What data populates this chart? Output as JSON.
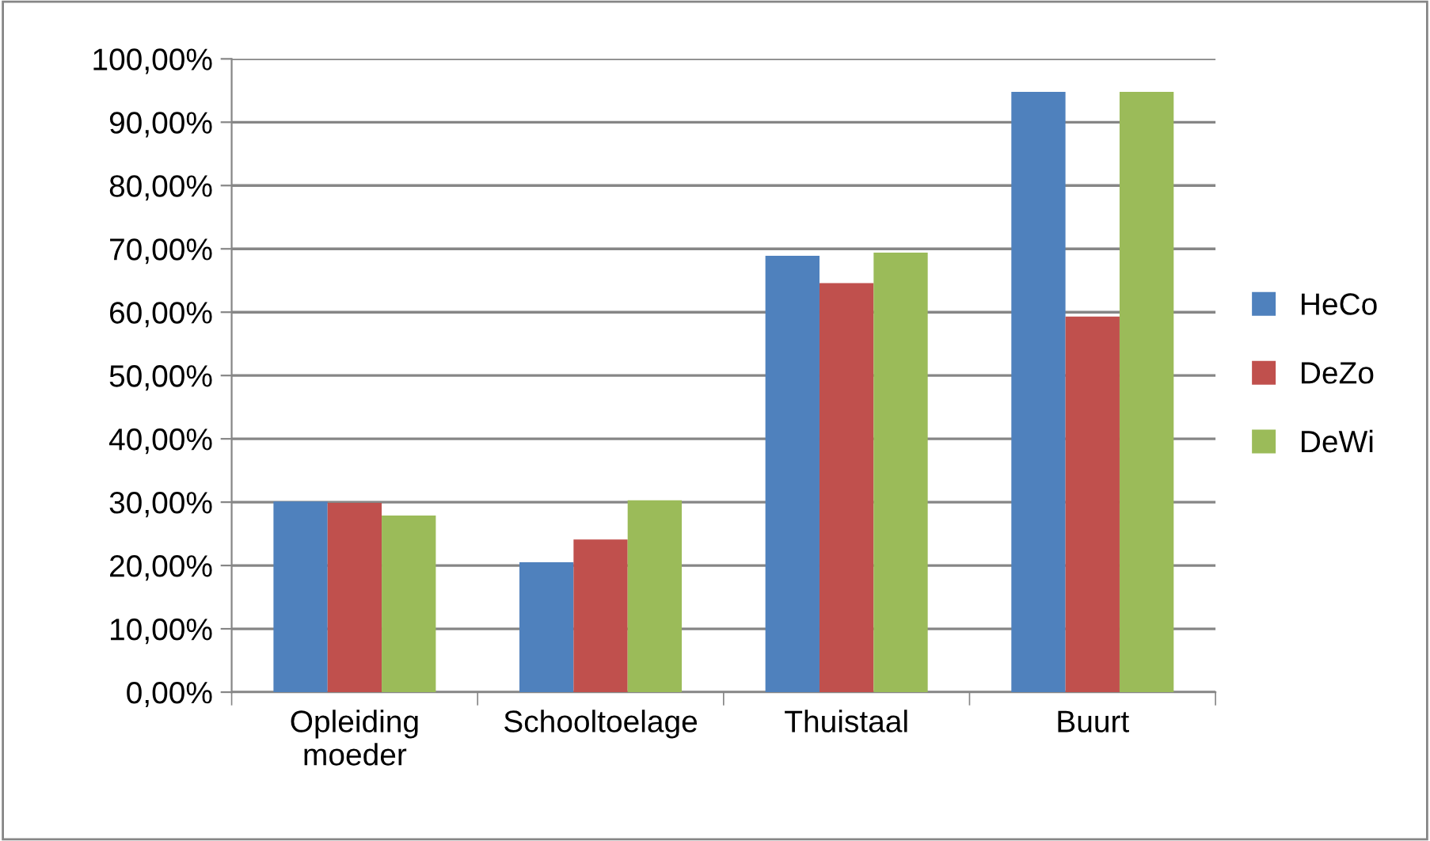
{
  "chart_data": {
    "type": "bar",
    "categories": [
      "Opleiding\nmoeder",
      "Schooltoelage",
      "Thuistaal",
      "Buurt"
    ],
    "series": [
      {
        "name": "HeCo",
        "color": "#4f81bd",
        "values": [
          30.1,
          20.5,
          68.9,
          94.8
        ]
      },
      {
        "name": "DeZo",
        "color": "#c0504d",
        "values": [
          29.9,
          24.1,
          64.6,
          59.3
        ]
      },
      {
        "name": "DeWi",
        "color": "#9bbb59",
        "values": [
          27.9,
          30.3,
          69.4,
          94.8
        ]
      }
    ],
    "ylim": [
      0,
      100
    ],
    "yticks": [
      {
        "value": 0,
        "label": "0,00%"
      },
      {
        "value": 10,
        "label": "10,00%"
      },
      {
        "value": 20,
        "label": "20,00%"
      },
      {
        "value": 30,
        "label": "30,00%"
      },
      {
        "value": 40,
        "label": "40,00%"
      },
      {
        "value": 50,
        "label": "50,00%"
      },
      {
        "value": 60,
        "label": "60,00%"
      },
      {
        "value": 70,
        "label": "70,00%"
      },
      {
        "value": 80,
        "label": "80,00%"
      },
      {
        "value": 90,
        "label": "90,00%"
      },
      {
        "value": 100,
        "label": "100,00%"
      }
    ],
    "grid": "y",
    "legend": "right"
  }
}
